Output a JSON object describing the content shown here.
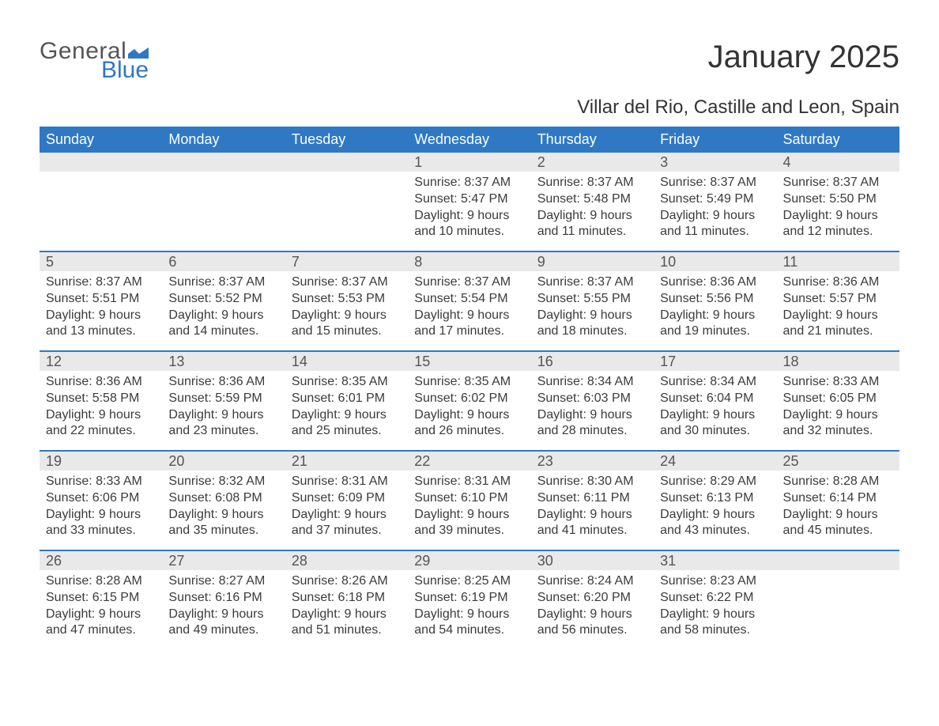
{
  "brand": {
    "part1": "General",
    "part2": "Blue",
    "part1_color": "#555555",
    "part2_color": "#2f78c4",
    "flag_color": "#2f78c4"
  },
  "title": "January 2025",
  "location": "Villar del Rio, Castille and Leon, Spain",
  "colors": {
    "header_bg": "#2f78c4",
    "header_text": "#ffffff",
    "daynum_bg": "#e9e9e9",
    "daynum_text": "#555555",
    "body_text": "#3b3b3b",
    "week_border": "#2f78c4",
    "page_bg": "#ffffff"
  },
  "fonts": {
    "title_size_pt": 30,
    "location_size_pt": 18,
    "dow_size_pt": 14,
    "daynum_size_pt": 14,
    "body_size_pt": 12
  },
  "dow": [
    "Sunday",
    "Monday",
    "Tuesday",
    "Wednesday",
    "Thursday",
    "Friday",
    "Saturday"
  ],
  "weeks": [
    [
      {
        "n": "",
        "sunrise": "",
        "sunset": "",
        "dl1": "",
        "dl2": ""
      },
      {
        "n": "",
        "sunrise": "",
        "sunset": "",
        "dl1": "",
        "dl2": ""
      },
      {
        "n": "",
        "sunrise": "",
        "sunset": "",
        "dl1": "",
        "dl2": ""
      },
      {
        "n": "1",
        "sunrise": "Sunrise: 8:37 AM",
        "sunset": "Sunset: 5:47 PM",
        "dl1": "Daylight: 9 hours",
        "dl2": "and 10 minutes."
      },
      {
        "n": "2",
        "sunrise": "Sunrise: 8:37 AM",
        "sunset": "Sunset: 5:48 PM",
        "dl1": "Daylight: 9 hours",
        "dl2": "and 11 minutes."
      },
      {
        "n": "3",
        "sunrise": "Sunrise: 8:37 AM",
        "sunset": "Sunset: 5:49 PM",
        "dl1": "Daylight: 9 hours",
        "dl2": "and 11 minutes."
      },
      {
        "n": "4",
        "sunrise": "Sunrise: 8:37 AM",
        "sunset": "Sunset: 5:50 PM",
        "dl1": "Daylight: 9 hours",
        "dl2": "and 12 minutes."
      }
    ],
    [
      {
        "n": "5",
        "sunrise": "Sunrise: 8:37 AM",
        "sunset": "Sunset: 5:51 PM",
        "dl1": "Daylight: 9 hours",
        "dl2": "and 13 minutes."
      },
      {
        "n": "6",
        "sunrise": "Sunrise: 8:37 AM",
        "sunset": "Sunset: 5:52 PM",
        "dl1": "Daylight: 9 hours",
        "dl2": "and 14 minutes."
      },
      {
        "n": "7",
        "sunrise": "Sunrise: 8:37 AM",
        "sunset": "Sunset: 5:53 PM",
        "dl1": "Daylight: 9 hours",
        "dl2": "and 15 minutes."
      },
      {
        "n": "8",
        "sunrise": "Sunrise: 8:37 AM",
        "sunset": "Sunset: 5:54 PM",
        "dl1": "Daylight: 9 hours",
        "dl2": "and 17 minutes."
      },
      {
        "n": "9",
        "sunrise": "Sunrise: 8:37 AM",
        "sunset": "Sunset: 5:55 PM",
        "dl1": "Daylight: 9 hours",
        "dl2": "and 18 minutes."
      },
      {
        "n": "10",
        "sunrise": "Sunrise: 8:36 AM",
        "sunset": "Sunset: 5:56 PM",
        "dl1": "Daylight: 9 hours",
        "dl2": "and 19 minutes."
      },
      {
        "n": "11",
        "sunrise": "Sunrise: 8:36 AM",
        "sunset": "Sunset: 5:57 PM",
        "dl1": "Daylight: 9 hours",
        "dl2": "and 21 minutes."
      }
    ],
    [
      {
        "n": "12",
        "sunrise": "Sunrise: 8:36 AM",
        "sunset": "Sunset: 5:58 PM",
        "dl1": "Daylight: 9 hours",
        "dl2": "and 22 minutes."
      },
      {
        "n": "13",
        "sunrise": "Sunrise: 8:36 AM",
        "sunset": "Sunset: 5:59 PM",
        "dl1": "Daylight: 9 hours",
        "dl2": "and 23 minutes."
      },
      {
        "n": "14",
        "sunrise": "Sunrise: 8:35 AM",
        "sunset": "Sunset: 6:01 PM",
        "dl1": "Daylight: 9 hours",
        "dl2": "and 25 minutes."
      },
      {
        "n": "15",
        "sunrise": "Sunrise: 8:35 AM",
        "sunset": "Sunset: 6:02 PM",
        "dl1": "Daylight: 9 hours",
        "dl2": "and 26 minutes."
      },
      {
        "n": "16",
        "sunrise": "Sunrise: 8:34 AM",
        "sunset": "Sunset: 6:03 PM",
        "dl1": "Daylight: 9 hours",
        "dl2": "and 28 minutes."
      },
      {
        "n": "17",
        "sunrise": "Sunrise: 8:34 AM",
        "sunset": "Sunset: 6:04 PM",
        "dl1": "Daylight: 9 hours",
        "dl2": "and 30 minutes."
      },
      {
        "n": "18",
        "sunrise": "Sunrise: 8:33 AM",
        "sunset": "Sunset: 6:05 PM",
        "dl1": "Daylight: 9 hours",
        "dl2": "and 32 minutes."
      }
    ],
    [
      {
        "n": "19",
        "sunrise": "Sunrise: 8:33 AM",
        "sunset": "Sunset: 6:06 PM",
        "dl1": "Daylight: 9 hours",
        "dl2": "and 33 minutes."
      },
      {
        "n": "20",
        "sunrise": "Sunrise: 8:32 AM",
        "sunset": "Sunset: 6:08 PM",
        "dl1": "Daylight: 9 hours",
        "dl2": "and 35 minutes."
      },
      {
        "n": "21",
        "sunrise": "Sunrise: 8:31 AM",
        "sunset": "Sunset: 6:09 PM",
        "dl1": "Daylight: 9 hours",
        "dl2": "and 37 minutes."
      },
      {
        "n": "22",
        "sunrise": "Sunrise: 8:31 AM",
        "sunset": "Sunset: 6:10 PM",
        "dl1": "Daylight: 9 hours",
        "dl2": "and 39 minutes."
      },
      {
        "n": "23",
        "sunrise": "Sunrise: 8:30 AM",
        "sunset": "Sunset: 6:11 PM",
        "dl1": "Daylight: 9 hours",
        "dl2": "and 41 minutes."
      },
      {
        "n": "24",
        "sunrise": "Sunrise: 8:29 AM",
        "sunset": "Sunset: 6:13 PM",
        "dl1": "Daylight: 9 hours",
        "dl2": "and 43 minutes."
      },
      {
        "n": "25",
        "sunrise": "Sunrise: 8:28 AM",
        "sunset": "Sunset: 6:14 PM",
        "dl1": "Daylight: 9 hours",
        "dl2": "and 45 minutes."
      }
    ],
    [
      {
        "n": "26",
        "sunrise": "Sunrise: 8:28 AM",
        "sunset": "Sunset: 6:15 PM",
        "dl1": "Daylight: 9 hours",
        "dl2": "and 47 minutes."
      },
      {
        "n": "27",
        "sunrise": "Sunrise: 8:27 AM",
        "sunset": "Sunset: 6:16 PM",
        "dl1": "Daylight: 9 hours",
        "dl2": "and 49 minutes."
      },
      {
        "n": "28",
        "sunrise": "Sunrise: 8:26 AM",
        "sunset": "Sunset: 6:18 PM",
        "dl1": "Daylight: 9 hours",
        "dl2": "and 51 minutes."
      },
      {
        "n": "29",
        "sunrise": "Sunrise: 8:25 AM",
        "sunset": "Sunset: 6:19 PM",
        "dl1": "Daylight: 9 hours",
        "dl2": "and 54 minutes."
      },
      {
        "n": "30",
        "sunrise": "Sunrise: 8:24 AM",
        "sunset": "Sunset: 6:20 PM",
        "dl1": "Daylight: 9 hours",
        "dl2": "and 56 minutes."
      },
      {
        "n": "31",
        "sunrise": "Sunrise: 8:23 AM",
        "sunset": "Sunset: 6:22 PM",
        "dl1": "Daylight: 9 hours",
        "dl2": "and 58 minutes."
      },
      {
        "n": "",
        "sunrise": "",
        "sunset": "",
        "dl1": "",
        "dl2": ""
      }
    ]
  ]
}
